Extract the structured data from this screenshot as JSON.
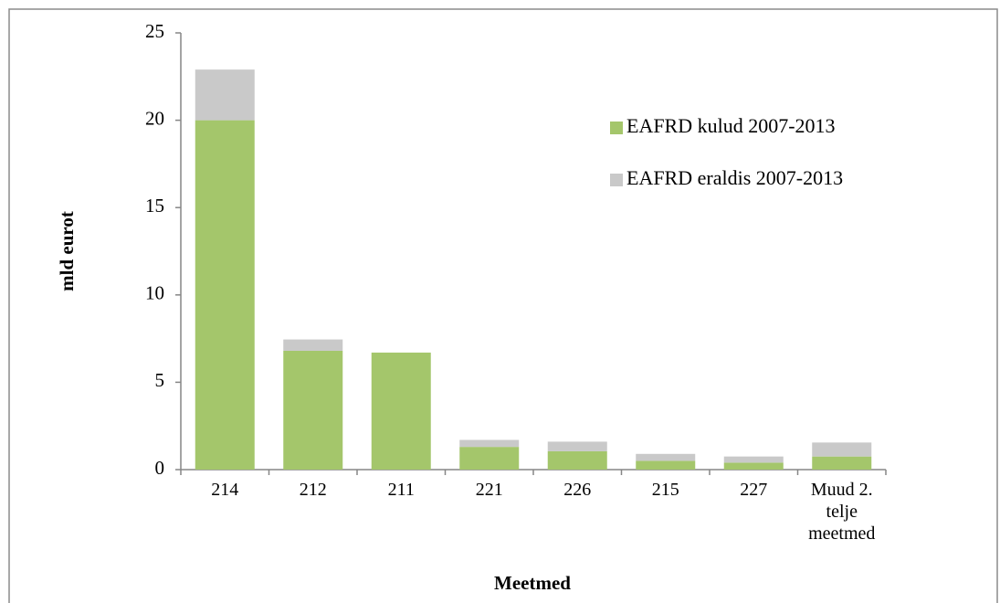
{
  "chart_data": {
    "type": "stacked-bar",
    "categories": [
      "214",
      "212",
      "211",
      "221",
      "226",
      "215",
      "227",
      "Muud 2. telje meetmed"
    ],
    "series": [
      {
        "name": "EAFRD kulud 2007-2013",
        "color": "#a4c66b",
        "values": [
          20.0,
          6.8,
          6.7,
          1.3,
          1.05,
          0.5,
          0.4,
          0.75
        ]
      },
      {
        "name": "EAFRD eraldis 2007-2013",
        "color": "#c9c9c9",
        "values": [
          2.9,
          0.65,
          0,
          0.4,
          0.55,
          0.4,
          0.35,
          0.8
        ]
      }
    ],
    "xlabel": "Meetmed",
    "ylabel": "mld eurot",
    "ylim": [
      0,
      25
    ],
    "yticks": [
      0,
      5,
      10,
      15,
      20,
      25
    ]
  }
}
